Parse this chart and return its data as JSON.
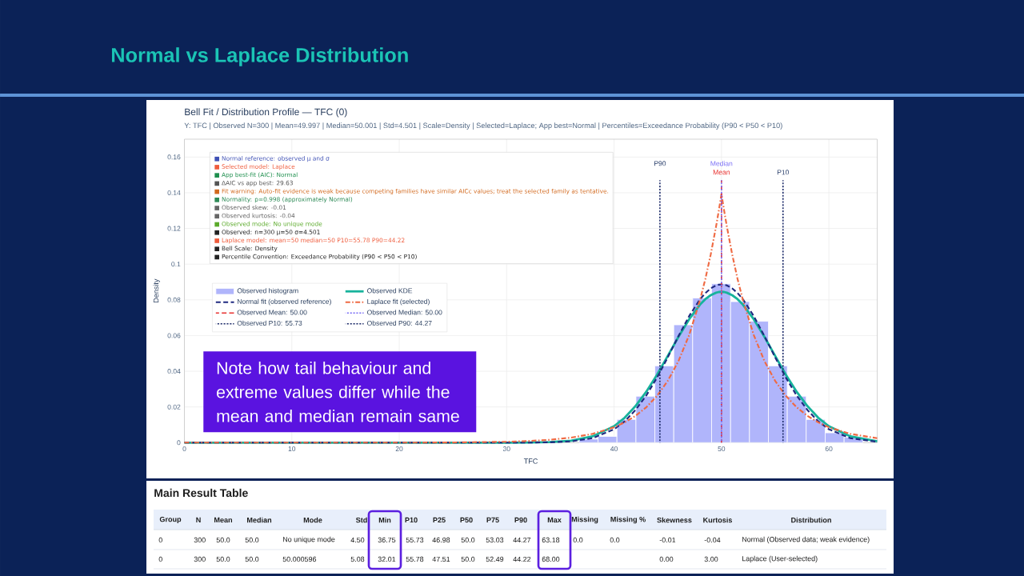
{
  "chart_data": [
    {
      "type": "histogram",
      "title": "Bell Fit / Distribution Profile — TFC (0)",
      "subtitle": "Y: TFC | Observed N=300 | Mean=49.997 | Median=50.001 | Std=4.501 | Scale=Density | Selected=Laplace; App best=Normal | Percentiles=Exceedance Probability (P90 < P50 < P10)",
      "xlabel": "TFC",
      "ylabel": "Density",
      "bins": [
        36.75,
        38.51,
        40.27,
        42.04,
        43.8,
        45.56,
        47.32,
        49.08,
        50.85,
        52.61,
        54.37,
        56.13,
        57.89,
        59.66,
        61.42,
        63.18
      ],
      "series": [
        {
          "name": "Observed histogram",
          "color": "#b0b5fb",
          "values": [
            0.002,
            0.0035,
            0.013,
            0.026,
            0.043,
            0.066,
            0.081,
            0.089,
            0.079,
            0.068,
            0.043,
            0.026,
            0.013,
            0.0055,
            0.003
          ]
        },
        {
          "name": "Observed KDE",
          "type": "line",
          "color": "#17b39c",
          "x": [
            0,
            10,
            20,
            25,
            30,
            32,
            34,
            36,
            38,
            40,
            41,
            42,
            43,
            44,
            45,
            46,
            47,
            48,
            48.5,
            49,
            49.5,
            49.75,
            50,
            50.25,
            50.5,
            51,
            51.5,
            52,
            53,
            54,
            55,
            56,
            57,
            58,
            59,
            60,
            62,
            64.5
          ],
          "values": [
            0,
            0,
            0,
            0,
            0,
            0.0001,
            0.0003,
            0.0011,
            0.0035,
            0.0092,
            0.014,
            0.0205,
            0.0285,
            0.038,
            0.0486,
            0.0593,
            0.0692,
            0.0773,
            0.0804,
            0.0826,
            0.084,
            0.0844,
            0.0845,
            0.0844,
            0.084,
            0.0826,
            0.0804,
            0.0773,
            0.0692,
            0.0593,
            0.0486,
            0.038,
            0.0285,
            0.0205,
            0.014,
            0.0092,
            0.0035,
            0.0008
          ]
        },
        {
          "name": "Normal fit (observed reference)",
          "type": "line",
          "color": "#1f2a80",
          "line_style": "dashed",
          "x": [
            0,
            10,
            20,
            25,
            30,
            32,
            34,
            36,
            38,
            40,
            41,
            42,
            43,
            44,
            45,
            46,
            47,
            48,
            48.5,
            49,
            49.5,
            49.75,
            50,
            50.25,
            50.5,
            51,
            51.5,
            52,
            53,
            54,
            55,
            56,
            57,
            58,
            59,
            60,
            62,
            64.5
          ],
          "values": [
            0,
            0,
            0,
            0,
            0,
            0,
            0.0002,
            0.0007,
            0.0025,
            0.0075,
            0.012,
            0.0183,
            0.0264,
            0.0364,
            0.0478,
            0.0597,
            0.071,
            0.0803,
            0.0838,
            0.0864,
            0.0881,
            0.0885,
            0.0886,
            0.0885,
            0.0881,
            0.0864,
            0.0838,
            0.0803,
            0.071,
            0.0597,
            0.0478,
            0.0364,
            0.0264,
            0.0183,
            0.012,
            0.0075,
            0.0025,
            0.0005
          ]
        },
        {
          "name": "Laplace fit (selected)",
          "type": "line",
          "color": "#ef6a43",
          "line_style": "dashdot",
          "x": [
            0,
            10,
            20,
            25,
            30,
            32,
            34,
            36,
            38,
            40,
            41,
            42,
            43,
            44,
            45,
            46,
            47,
            48,
            48.5,
            49,
            49.5,
            49.75,
            50,
            50.25,
            50.5,
            51,
            51.5,
            52,
            53,
            54,
            55,
            56,
            57,
            58,
            59,
            60,
            62,
            64.5
          ],
          "values": [
            0,
            0,
            0,
            0.0001,
            0.0005,
            0.0009,
            0.0016,
            0.0028,
            0.0049,
            0.0086,
            0.0114,
            0.015,
            0.0198,
            0.0262,
            0.0346,
            0.0457,
            0.0604,
            0.0798,
            0.0917,
            0.1054,
            0.1212,
            0.1299,
            0.1393,
            0.1299,
            0.1212,
            0.1054,
            0.0917,
            0.0798,
            0.0604,
            0.0457,
            0.0346,
            0.0262,
            0.0198,
            0.015,
            0.0114,
            0.0086,
            0.0049,
            0.0025
          ]
        },
        {
          "name": "Observed Mean: 50.00",
          "type": "line",
          "color": "#e8312f",
          "line_style": "dashed",
          "x": [
            50,
            50
          ],
          "values": [
            0,
            0.147
          ]
        },
        {
          "name": "Observed Median: 50.00",
          "type": "line",
          "color": "#7a6ef5",
          "line_style": "dotted",
          "x": [
            50,
            50
          ],
          "values": [
            0,
            0.147
          ]
        },
        {
          "name": "Observed P10: 55.73",
          "type": "line",
          "color": "#1f2d6b",
          "line_style": "dotted",
          "x": [
            55.73,
            55.73
          ],
          "values": [
            0,
            0.147
          ]
        },
        {
          "name": "Observed P90: 44.27",
          "type": "line",
          "color": "#1f2d6b",
          "line_style": "dotted",
          "x": [
            44.27,
            44.27
          ],
          "values": [
            0,
            0.147
          ]
        }
      ],
      "xlim": [
        0,
        64.5
      ],
      "ylim": [
        0,
        0.17
      ],
      "xticks": [
        0,
        10,
        20,
        30,
        40,
        50,
        60
      ],
      "yticks": [
        0,
        0.02,
        0.04,
        0.06,
        0.08,
        0.1,
        0.12,
        0.14,
        0.16
      ],
      "grid": true,
      "legend": "left",
      "annotations": [
        "Normal vs Laplace Distribution",
        "■ Normal reference: observed μ and σ",
        "■ Selected model: Laplace",
        "■ App best-fit (AIC): Normal",
        "■ ΔAIC vs app best: 29.63",
        "■ Fit warning: Auto-fit evidence is weak because competing families have similar AICc values; treat the selected family as tentative.",
        "■ Normality: p=0.998 (approximately Normal)",
        "■ Observed skew: -0.01",
        "■ Observed kurtosis: -0.04",
        "■ Observed mode: No unique mode",
        "■ Observed: n=300   μ=50   σ=4.501",
        "■ Laplace model: mean=50   median=50   P10=55.78   P90=44.22",
        "■ Bell Scale: Density",
        "■ Percentile Convention: Exceedance Probability (P90 < P50 < P10)",
        "Note how tail behaviour and extreme values differ while the mean and median remain same",
        {
          "text": "P90",
          "x": 44.27,
          "y": 0.147
        },
        {
          "text": "Median",
          "x": 50,
          "y": 0.147
        },
        {
          "text": "Mean",
          "x": 50,
          "y": 0.147
        },
        {
          "text": "P10",
          "x": 55.73,
          "y": 0.147
        }
      ]
    },
    {
      "type": "other",
      "title": "Main Result Table",
      "categories": [
        "Group",
        "N",
        "Mean",
        "Median",
        "Mode",
        "Std",
        "Min",
        "P10",
        "P25",
        "P50",
        "P75",
        "P90",
        "Max",
        "Missing",
        "Missing %",
        "Skewness",
        "Kurtosis",
        "Distribution"
      ],
      "cell_labels": [
        [
          "0",
          "300",
          "50.0",
          "50.0",
          "No unique mode",
          "4.50",
          "36.75",
          "55.73",
          "46.98",
          "50.0",
          "53.03",
          "44.27",
          "63.18",
          "0.0",
          "0.0",
          "-0.01",
          "-0.04",
          "Normal (Observed data; weak evidence)"
        ],
        [
          "0",
          "300",
          "50.0",
          "50.0",
          "50.000596",
          "5.08",
          "32.01",
          "55.78",
          "47.51",
          "50.0",
          "52.49",
          "44.22",
          "68.00",
          null,
          null,
          "0.00",
          "3.00",
          "Laplace (User-selected)"
        ]
      ]
    }
  ]
}
